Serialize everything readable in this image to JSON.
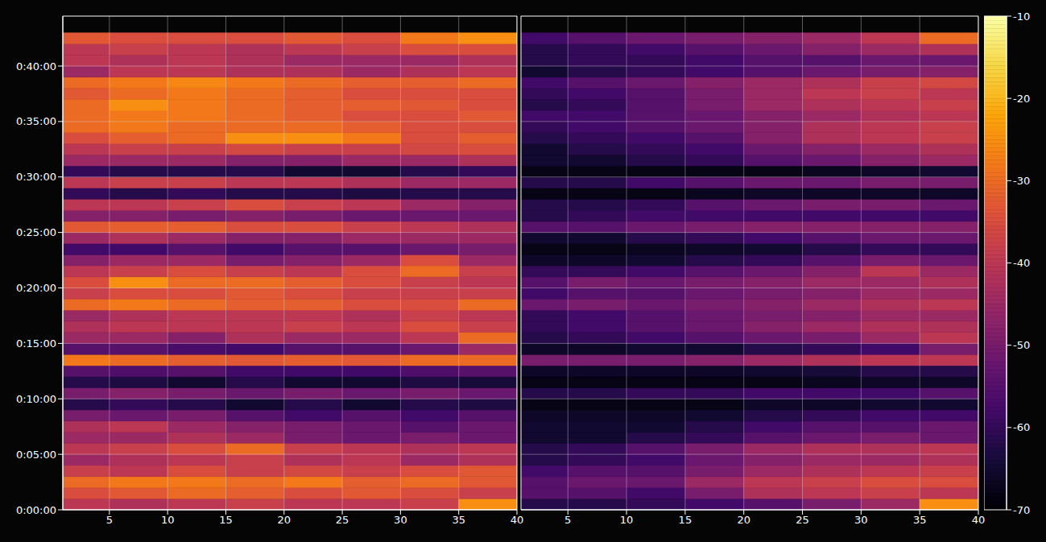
{
  "chart_data": {
    "type": "heatmap",
    "ylim": [
      0,
      2670
    ],
    "yticks": [
      {
        "value": 0,
        "label": "0:00:00"
      },
      {
        "value": 300,
        "label": "0:05:00"
      },
      {
        "value": 600,
        "label": "0:10:00"
      },
      {
        "value": 900,
        "label": "0:15:00"
      },
      {
        "value": 1200,
        "label": "0:20:00"
      },
      {
        "value": 1500,
        "label": "0:25:00"
      },
      {
        "value": 1800,
        "label": "0:30:00"
      },
      {
        "value": 2100,
        "label": "0:35:00"
      },
      {
        "value": 2400,
        "label": "0:40:00"
      }
    ],
    "grid": true,
    "y_edges": [
      0,
      60,
      120,
      180,
      240,
      300,
      360,
      420,
      480,
      540,
      600,
      660,
      720,
      780,
      840,
      900,
      960,
      1020,
      1080,
      1140,
      1200,
      1260,
      1320,
      1380,
      1440,
      1500,
      1560,
      1620,
      1680,
      1740,
      1800,
      1860,
      1920,
      1980,
      2040,
      2100,
      2160,
      2220,
      2280,
      2340,
      2400,
      2460,
      2520,
      2580
    ],
    "colorbar": {
      "zlim": [
        -70,
        -10
      ],
      "zticks": [
        -70,
        -60,
        -50,
        -40,
        -30,
        -20,
        -10
      ]
    },
    "panels": [
      {
        "xlim": [
          1,
          40
        ],
        "xticks": [
          5,
          10,
          15,
          20,
          25,
          30,
          35,
          40
        ],
        "x_edges": [
          1,
          5,
          10,
          15,
          20,
          25,
          30,
          35,
          40
        ],
        "cells": [
          [
            -40,
            -42,
            -40,
            -38,
            -40,
            -40,
            -38,
            -25
          ],
          [
            -35,
            -33,
            -30,
            -32,
            -35,
            -33,
            -35,
            -38
          ],
          [
            -30,
            -28,
            -28,
            -30,
            -28,
            -32,
            -30,
            -33
          ],
          [
            -38,
            -40,
            -35,
            -38,
            -36,
            -38,
            -35,
            -33
          ],
          [
            -45,
            -42,
            -40,
            -38,
            -42,
            -40,
            -45,
            -42
          ],
          [
            -40,
            -38,
            -35,
            -30,
            -38,
            -40,
            -42,
            -40
          ],
          [
            -45,
            -45,
            -42,
            -45,
            -50,
            -52,
            -50,
            -52
          ],
          [
            -42,
            -40,
            -45,
            -48,
            -50,
            -52,
            -55,
            -52
          ],
          [
            -50,
            -52,
            -50,
            -55,
            -58,
            -55,
            -58,
            -55
          ],
          [
            -62,
            -60,
            -62,
            -65,
            -62,
            -65,
            -62,
            -63
          ],
          [
            -50,
            -48,
            -50,
            -52,
            -50,
            -52,
            -50,
            -52
          ],
          [
            -62,
            -63,
            -65,
            -62,
            -65,
            -65,
            -63,
            -64
          ],
          [
            -55,
            -56,
            -55,
            -58,
            -58,
            -58,
            -56,
            -55
          ],
          [
            -28,
            -30,
            -32,
            -33,
            -32,
            -33,
            -30,
            -30
          ],
          [
            -55,
            -55,
            -57,
            -58,
            -55,
            -55,
            -52,
            -45
          ],
          [
            -45,
            -45,
            -48,
            -42,
            -45,
            -45,
            -40,
            -30
          ],
          [
            -42,
            -40,
            -40,
            -40,
            -38,
            -40,
            -35,
            -38
          ],
          [
            -45,
            -42,
            -40,
            -40,
            -40,
            -42,
            -38,
            -40
          ],
          [
            -30,
            -28,
            -30,
            -32,
            -32,
            -35,
            -35,
            -30
          ],
          [
            -38,
            -35,
            -35,
            -33,
            -35,
            -38,
            -38,
            -38
          ],
          [
            -35,
            -25,
            -30,
            -30,
            -32,
            -35,
            -38,
            -40
          ],
          [
            -40,
            -38,
            -35,
            -38,
            -40,
            -35,
            -30,
            -38
          ],
          [
            -48,
            -45,
            -45,
            -50,
            -48,
            -45,
            -35,
            -45
          ],
          [
            -58,
            -58,
            -55,
            -58,
            -55,
            -55,
            -52,
            -50
          ],
          [
            -45,
            -42,
            -45,
            -48,
            -48,
            -45,
            -45,
            -45
          ],
          [
            -33,
            -32,
            -32,
            -35,
            -35,
            -38,
            -40,
            -42
          ],
          [
            -48,
            -48,
            -50,
            -48,
            -50,
            -52,
            -52,
            -52
          ],
          [
            -40,
            -40,
            -38,
            -35,
            -38,
            -40,
            -45,
            -48
          ],
          [
            -60,
            -62,
            -60,
            -62,
            -62,
            -63,
            -62,
            -62
          ],
          [
            -40,
            -38,
            -38,
            -40,
            -40,
            -42,
            -45,
            -45
          ],
          [
            -60,
            -62,
            -62,
            -62,
            -65,
            -65,
            -62,
            -60
          ],
          [
            -45,
            -45,
            -45,
            -48,
            -48,
            -45,
            -45,
            -42
          ],
          [
            -40,
            -38,
            -38,
            -36,
            -38,
            -38,
            -36,
            -35
          ],
          [
            -35,
            -32,
            -30,
            -25,
            -25,
            -28,
            -35,
            -32
          ],
          [
            -30,
            -28,
            -30,
            -30,
            -30,
            -32,
            -35,
            -35
          ],
          [
            -30,
            -28,
            -28,
            -30,
            -32,
            -35,
            -35,
            -33
          ],
          [
            -30,
            -25,
            -28,
            -30,
            -32,
            -32,
            -33,
            -35
          ],
          [
            -33,
            -30,
            -28,
            -30,
            -32,
            -35,
            -35,
            -35
          ],
          [
            -30,
            -28,
            -26,
            -28,
            -30,
            -32,
            -32,
            -30
          ],
          [
            -45,
            -40,
            -40,
            -42,
            -42,
            -45,
            -42,
            -40
          ],
          [
            -40,
            -42,
            -40,
            -42,
            -45,
            -45,
            -45,
            -42
          ],
          [
            -40,
            -38,
            -40,
            -42,
            -40,
            -38,
            -35,
            -35
          ],
          [
            -33,
            -35,
            -35,
            -35,
            -33,
            -35,
            -28,
            -25
          ]
        ]
      },
      {
        "xlim": [
          1,
          40
        ],
        "xticks": [
          5,
          10,
          15,
          20,
          25,
          30,
          35,
          40
        ],
        "x_edges": [
          1,
          5,
          10,
          15,
          20,
          25,
          30,
          35,
          40
        ],
        "cells": [
          [
            -62,
            -62,
            -60,
            -58,
            -55,
            -50,
            -45,
            -25
          ],
          [
            -55,
            -55,
            -58,
            -50,
            -42,
            -40,
            -38,
            -40
          ],
          [
            -55,
            -52,
            -52,
            -45,
            -40,
            -38,
            -35,
            -35
          ],
          [
            -58,
            -55,
            -55,
            -50,
            -45,
            -42,
            -40,
            -38
          ],
          [
            -62,
            -60,
            -58,
            -52,
            -48,
            -45,
            -45,
            -42
          ],
          [
            -62,
            -60,
            -55,
            -50,
            -45,
            -42,
            -42,
            -40
          ],
          [
            -65,
            -65,
            -62,
            -60,
            -55,
            -52,
            -50,
            -52
          ],
          [
            -65,
            -65,
            -65,
            -62,
            -58,
            -55,
            -55,
            -52
          ],
          [
            -66,
            -66,
            -66,
            -65,
            -62,
            -60,
            -58,
            -58
          ],
          [
            -68,
            -68,
            -68,
            -68,
            -66,
            -66,
            -65,
            -65
          ],
          [
            -62,
            -62,
            -60,
            -60,
            -58,
            -58,
            -58,
            -55
          ],
          [
            -68,
            -68,
            -68,
            -68,
            -68,
            -67,
            -66,
            -66
          ],
          [
            -66,
            -66,
            -66,
            -66,
            -65,
            -64,
            -62,
            -62
          ],
          [
            -50,
            -50,
            -50,
            -48,
            -45,
            -42,
            -40,
            -40
          ],
          [
            -66,
            -66,
            -65,
            -65,
            -62,
            -60,
            -58,
            -50
          ],
          [
            -62,
            -60,
            -58,
            -55,
            -52,
            -50,
            -45,
            -40
          ],
          [
            -60,
            -58,
            -55,
            -52,
            -48,
            -45,
            -42,
            -42
          ],
          [
            -60,
            -58,
            -55,
            -52,
            -50,
            -48,
            -45,
            -45
          ],
          [
            -52,
            -50,
            -52,
            -50,
            -48,
            -45,
            -42,
            -40
          ],
          [
            -58,
            -55,
            -55,
            -52,
            -50,
            -48,
            -45,
            -45
          ],
          [
            -55,
            -50,
            -52,
            -50,
            -48,
            -45,
            -45,
            -42
          ],
          [
            -60,
            -60,
            -58,
            -55,
            -52,
            -48,
            -40,
            -45
          ],
          [
            -66,
            -66,
            -65,
            -62,
            -60,
            -55,
            -50,
            -52
          ],
          [
            -68,
            -68,
            -67,
            -66,
            -65,
            -62,
            -60,
            -60
          ],
          [
            -65,
            -65,
            -62,
            -60,
            -58,
            -55,
            -52,
            -52
          ],
          [
            -55,
            -55,
            -52,
            -50,
            -48,
            -48,
            -48,
            -48
          ],
          [
            -62,
            -60,
            -58,
            -58,
            -58,
            -58,
            -58,
            -58
          ],
          [
            -62,
            -62,
            -60,
            -55,
            -52,
            -50,
            -50,
            -52
          ],
          [
            -68,
            -68,
            -68,
            -67,
            -66,
            -66,
            -66,
            -66
          ],
          [
            -62,
            -62,
            -58,
            -55,
            -52,
            -52,
            -50,
            -50
          ],
          [
            -68,
            -68,
            -68,
            -68,
            -68,
            -67,
            -66,
            -65
          ],
          [
            -65,
            -65,
            -62,
            -60,
            -55,
            -52,
            -48,
            -45
          ],
          [
            -65,
            -62,
            -60,
            -58,
            -52,
            -48,
            -45,
            -42
          ],
          [
            -62,
            -60,
            -58,
            -55,
            -48,
            -42,
            -40,
            -38
          ],
          [
            -60,
            -58,
            -55,
            -52,
            -48,
            -42,
            -40,
            -38
          ],
          [
            -58,
            -58,
            -55,
            -52,
            -48,
            -45,
            -42,
            -40
          ],
          [
            -62,
            -60,
            -55,
            -50,
            -45,
            -42,
            -40,
            -38
          ],
          [
            -60,
            -58,
            -55,
            -50,
            -45,
            -40,
            -38,
            -40
          ],
          [
            -58,
            -55,
            -52,
            -48,
            -45,
            -42,
            -38,
            -36
          ],
          [
            -65,
            -62,
            -60,
            -58,
            -55,
            -52,
            -50,
            -48
          ],
          [
            -62,
            -60,
            -60,
            -58,
            -55,
            -55,
            -52,
            -52
          ],
          [
            -62,
            -60,
            -58,
            -55,
            -52,
            -48,
            -45,
            -42
          ],
          [
            -58,
            -55,
            -52,
            -50,
            -48,
            -45,
            -40,
            -30
          ]
        ]
      }
    ]
  }
}
